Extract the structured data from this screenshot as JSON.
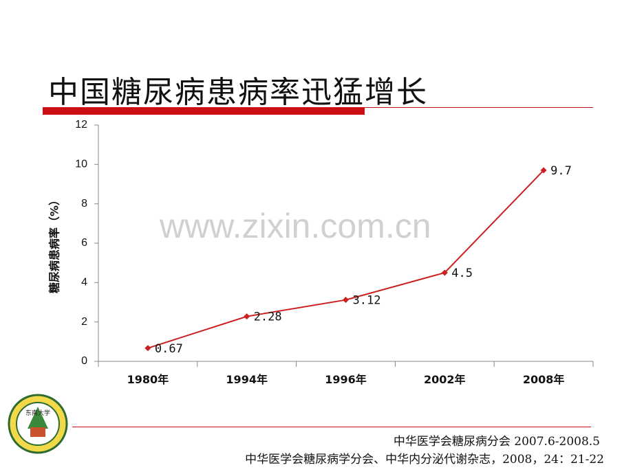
{
  "slide": {
    "title": "中国糖尿病患病率迅猛增长",
    "watermark": "www.zixin.com.cn",
    "source_line1": "中华医学会糖尿病分会  2007.6-2008.5",
    "source_line2": "中华医学会糖尿病学分会、中华内分泌代谢杂志，2008，24：21-22",
    "logo_text": "东南大学"
  },
  "colors": {
    "accent": "#cc0f16",
    "line": "#cc1f1f",
    "axis": "#888888"
  },
  "chart_data": {
    "type": "line",
    "categories": [
      "1980年",
      "1994年",
      "1996年",
      "2002年",
      "2008年"
    ],
    "series": [
      {
        "values": [
          0.67,
          2.28,
          3.12,
          4.5,
          9.7
        ]
      }
    ],
    "data_labels": [
      "0.67",
      "2.28",
      "3.12",
      "4.5",
      "9.7"
    ],
    "ylabel": "糖尿病患病率（%）",
    "xlabel": "",
    "ylim": [
      0,
      12
    ],
    "yticks": [
      "0",
      "2",
      "4",
      "6",
      "8",
      "10",
      "12"
    ],
    "grid": false,
    "legend": "none"
  }
}
